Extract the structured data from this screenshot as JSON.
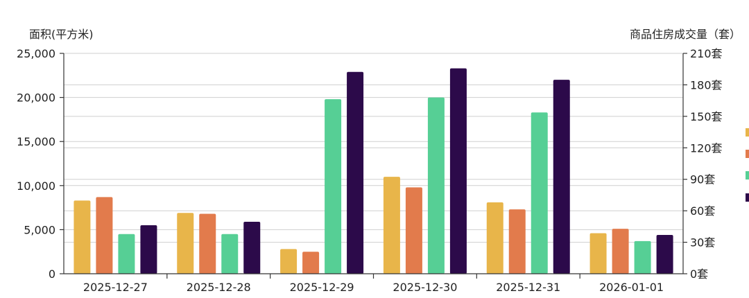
{
  "chart_data": {
    "type": "bar",
    "categories": [
      "2025-12-27",
      "2025-12-28",
      "2025-12-29",
      "2025-12-30",
      "2025-12-31",
      "2026-01-01"
    ],
    "y_left_label": "面积(平方米)",
    "y_right_label": "商品住房成交量（套）",
    "y_left_range": [
      0,
      25000
    ],
    "y_left_ticks": [
      "0",
      "5,000",
      "10,000",
      "15,000",
      "20,000",
      "25,000"
    ],
    "y_right_range": [
      0,
      210
    ],
    "y_right_ticks": [
      "0套",
      "30套",
      "60套",
      "90套",
      "120套",
      "150套",
      "180套",
      "210套"
    ],
    "grid": true,
    "series": [
      {
        "color": "#e8b54a",
        "values": [
          8300,
          6900,
          2800,
          11000,
          8100,
          4600
        ]
      },
      {
        "color": "#e27b4c",
        "values": [
          8700,
          6800,
          2500,
          9800,
          7300,
          5100
        ]
      },
      {
        "color": "#56cf95",
        "values": [
          4500,
          4500,
          19800,
          20000,
          18300,
          3700
        ]
      },
      {
        "color": "#2c0a4a",
        "values": [
          5500,
          5900,
          22900,
          23300,
          22000,
          4400
        ]
      }
    ],
    "legend_position": "right (partially cropped)"
  }
}
